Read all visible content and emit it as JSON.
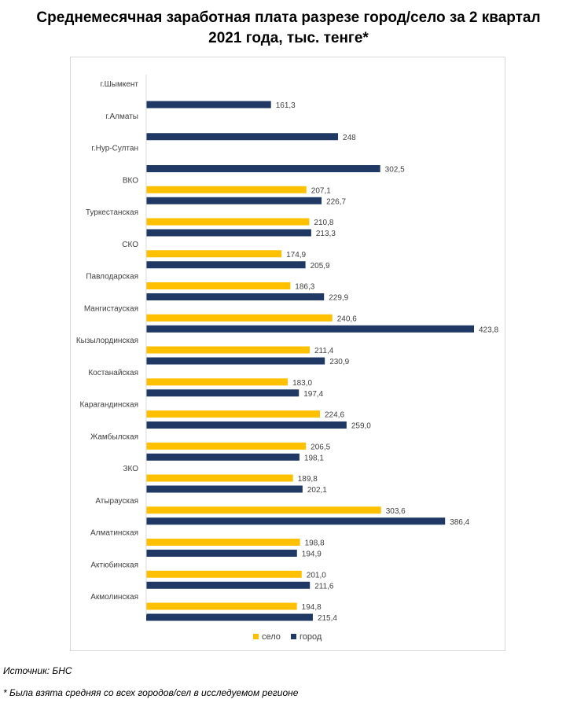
{
  "header": {
    "title_line1": "Среднемесячная заработная плата разрезе город/село за 2 квартал",
    "title_line2": "2021 года, тыс. тенге*"
  },
  "footer": {
    "source": "Источник: БНС",
    "note": "* Была взята средняя со всех городов/сел в исследуемом регионе"
  },
  "chart_data": {
    "type": "bar",
    "orientation": "horizontal",
    "categories": [
      "г.Шымкент",
      "г.Алматы",
      "г.Нур-Султан",
      "ВКО",
      "Туркестанская",
      "СКО",
      "Павлодарская",
      "Мангистауская",
      "Кызылординская",
      "Костанайская",
      "Карагандинская",
      "Жамбылская",
      "ЗКО",
      "Атырауская",
      "Алматинская",
      "Актюбинская",
      "Акмолинская"
    ],
    "series": [
      {
        "name": "село",
        "color": "#ffc000",
        "values": [
          null,
          null,
          null,
          207.1,
          210.8,
          174.9,
          186.3,
          240.6,
          211.4,
          183.0,
          224.6,
          206.5,
          189.8,
          303.6,
          198.8,
          201.0,
          194.8
        ],
        "labels": [
          "",
          "",
          "",
          "207,1",
          "210,8",
          "174,9",
          "186,3",
          "240,6",
          "211,4",
          "183,0",
          "224,6",
          "206,5",
          "189,8",
          "303,6",
          "198,8",
          "201,0",
          "194,8"
        ]
      },
      {
        "name": "город",
        "color": "#1f3864",
        "values": [
          161.3,
          248,
          302.5,
          226.7,
          213.3,
          205.9,
          229.9,
          423.8,
          230.9,
          197.4,
          259.0,
          198.1,
          202.1,
          386.4,
          194.9,
          211.6,
          215.4
        ],
        "labels": [
          "161,3",
          "248",
          "302,5",
          "226,7",
          "213,3",
          "205,9",
          "229,9",
          "423,8",
          "230,9",
          "197,4",
          "259,0",
          "198,1",
          "202,1",
          "386,4",
          "194,9",
          "211,6",
          "215,4"
        ]
      }
    ],
    "xlim": [
      0,
      450
    ],
    "grid": false,
    "legend": "bottom"
  }
}
